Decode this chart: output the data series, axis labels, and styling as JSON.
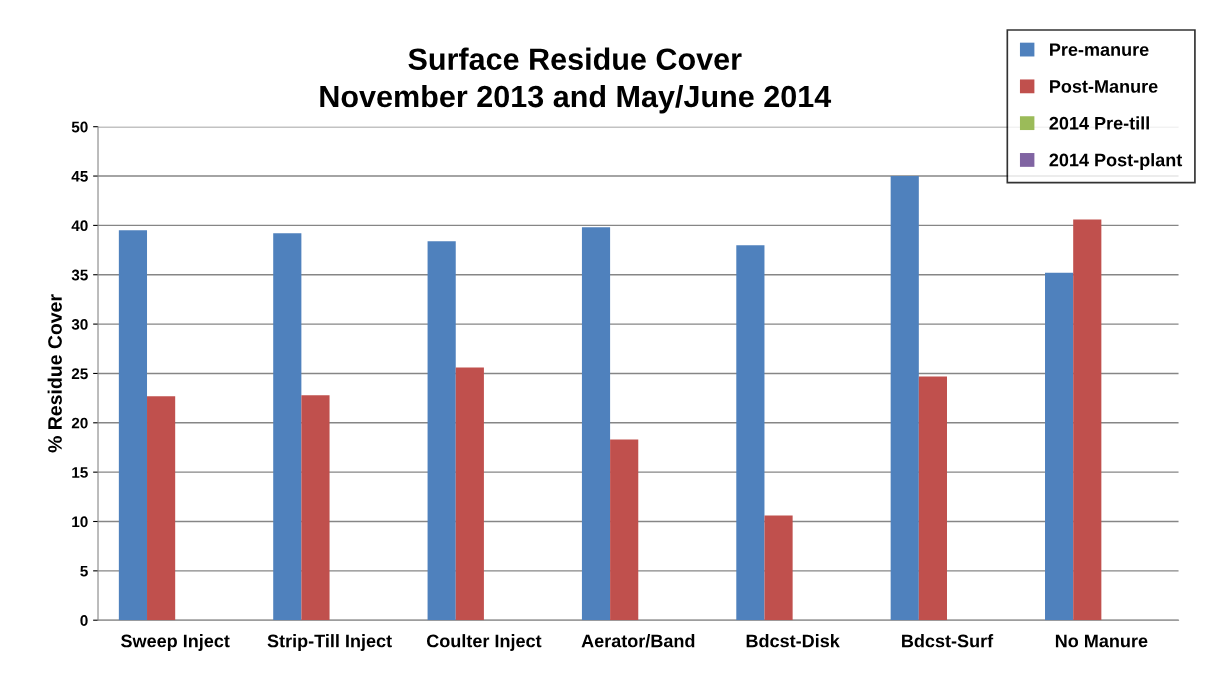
{
  "chart_data": {
    "type": "bar",
    "title": "Surface Residue Cover\nNovember 2013 and May/June 2014",
    "ylabel": "% Residue Cover",
    "categories": [
      "Sweep Inject",
      "Strip-Till Inject",
      "Coulter Inject",
      "Aerator/Band",
      "Bdcst-Disk",
      "Bdcst-Surf",
      "No Manure"
    ],
    "series": [
      {
        "name": "Pre-manure",
        "color": "#4f81bd",
        "values": [
          39.5,
          39.2,
          38.4,
          39.8,
          38.0,
          45.0,
          35.2
        ]
      },
      {
        "name": "Post-Manure",
        "color": "#c0504d",
        "values": [
          22.7,
          22.8,
          25.6,
          18.3,
          10.6,
          24.7,
          40.6
        ]
      },
      {
        "name": "2014 Pre-till",
        "color": "#9bbb59",
        "values": [
          null,
          null,
          null,
          null,
          null,
          null,
          null
        ]
      },
      {
        "name": "2014 Post-plant",
        "color": "#8064a2",
        "values": [
          null,
          null,
          null,
          null,
          null,
          null,
          null
        ]
      }
    ],
    "ylim": [
      0,
      50
    ],
    "yticks": [
      0,
      5,
      10,
      15,
      20,
      25,
      30,
      35,
      40,
      45,
      50
    ],
    "grid": "y",
    "legend": "top right"
  }
}
